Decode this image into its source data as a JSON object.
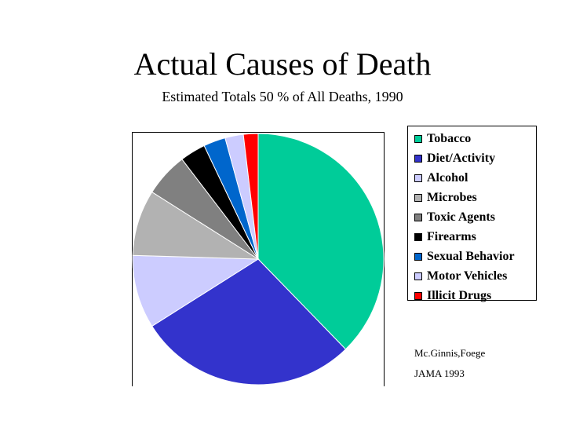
{
  "chart_data": {
    "type": "pie",
    "title": "Actual Causes of Death",
    "subtitle": "Estimated Totals 50 % of All Deaths, 1990",
    "legend_position": "right",
    "slices": [
      {
        "label": "Tobacco",
        "value": 400000,
        "color": "#00CC99"
      },
      {
        "label": "Diet/Activity",
        "value": 300000,
        "color": "#3333CC"
      },
      {
        "label": "Alcohol",
        "value": 100000,
        "color": "#CCCCFF"
      },
      {
        "label": "Microbes",
        "value": 90000,
        "color": "#B2B2B2"
      },
      {
        "label": "Toxic Agents",
        "value": 60000,
        "color": "#808080"
      },
      {
        "label": "Firearms",
        "value": 35000,
        "color": "#000000"
      },
      {
        "label": "Sexual Behavior",
        "value": 30000,
        "color": "#0066CC"
      },
      {
        "label": "Motor Vehicles",
        "value": 25000,
        "color": "#CCCCFF"
      },
      {
        "label": "Illicit Drugs",
        "value": 20000,
        "color": "#FF0000"
      }
    ]
  },
  "source": {
    "line1": "Mc.Ginnis,Foege",
    "line2": "JAMA 1993"
  }
}
